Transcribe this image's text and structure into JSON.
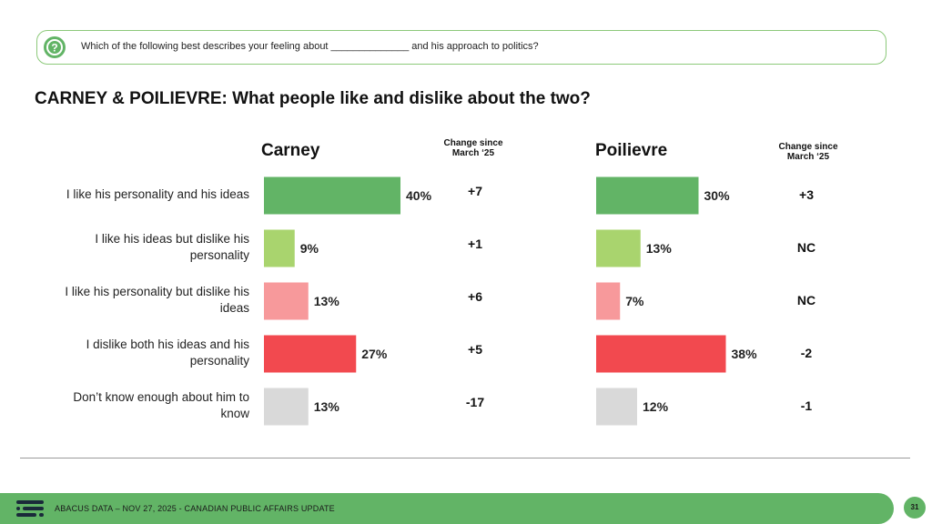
{
  "question": {
    "text": "Which of the following best describes your feeling about ______________ and his approach to politics?",
    "icon": "question-icon"
  },
  "title": "CARNEY & POILIEVRE: What people like and dislike about the two?",
  "chart_data": {
    "type": "bar",
    "orientation": "horizontal",
    "categories": [
      "I like his personality and his ideas",
      "I like his ideas but dislike his personality",
      "I like his personality but dislike his ideas",
      "I dislike both his ideas and his personality",
      "Don’t know enough about him to know"
    ],
    "category_lines": [
      [
        "I like his personality and his ideas"
      ],
      [
        "I like his ideas but dislike his",
        "personality"
      ],
      [
        "I like his personality but dislike his",
        "ideas"
      ],
      [
        "I dislike both his ideas and his",
        "personality"
      ],
      [
        "Don’t know enough about him to",
        "know"
      ]
    ],
    "colors": [
      "#62b466",
      "#a9d46e",
      "#f7999b",
      "#f2494f",
      "#d9d9d9"
    ],
    "change_header": [
      "Change since",
      "March ‘25"
    ],
    "xlim": [
      0,
      40
    ],
    "series": [
      {
        "name": "Carney",
        "values": [
          40,
          9,
          13,
          27,
          13
        ],
        "labels": [
          "40%",
          "9%",
          "13%",
          "27%",
          "13%"
        ],
        "change": [
          "+7",
          "+1",
          "+6",
          "+5",
          "-17"
        ]
      },
      {
        "name": "Poilievre",
        "values": [
          30,
          13,
          7,
          38,
          12
        ],
        "labels": [
          "30%",
          "13%",
          "7%",
          "38%",
          "12%"
        ],
        "change": [
          "+3",
          "NC",
          "NC",
          "-2",
          "-1"
        ]
      }
    ]
  },
  "footer": {
    "text": "ABACUS DATA – NOV 27, 2025 - CANADIAN PUBLIC AFFAIRS UPDATE",
    "page": "31",
    "color": "#62b466"
  }
}
